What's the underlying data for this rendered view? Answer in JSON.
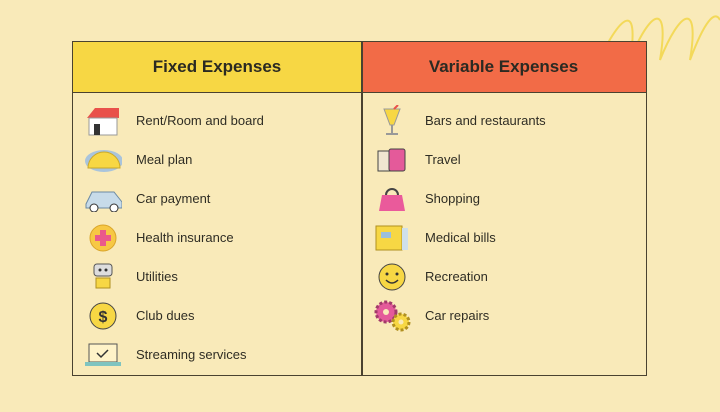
{
  "fixed": {
    "title": "Fixed Expenses",
    "color": "#f7d744",
    "items": [
      {
        "label": "Rent/Room and board",
        "icon": "house-icon"
      },
      {
        "label": "Meal plan",
        "icon": "taco-icon"
      },
      {
        "label": "Car payment",
        "icon": "car-icon"
      },
      {
        "label": "Health insurance",
        "icon": "medical-cross-icon"
      },
      {
        "label": "Utilities",
        "icon": "robot-icon"
      },
      {
        "label": "Club dues",
        "icon": "dollar-coin-icon"
      },
      {
        "label": "Streaming services",
        "icon": "laptop-icon"
      }
    ]
  },
  "variable": {
    "title": "Variable Expenses",
    "color": "#f26b47",
    "items": [
      {
        "label": "Bars and restaurants",
        "icon": "cocktail-icon"
      },
      {
        "label": "Travel",
        "icon": "luggage-icon"
      },
      {
        "label": "Shopping",
        "icon": "handbag-icon"
      },
      {
        "label": "Medical bills",
        "icon": "bill-icon"
      },
      {
        "label": "Recreation",
        "icon": "smiley-icon"
      },
      {
        "label": "Car repairs",
        "icon": "gears-icon"
      }
    ]
  }
}
